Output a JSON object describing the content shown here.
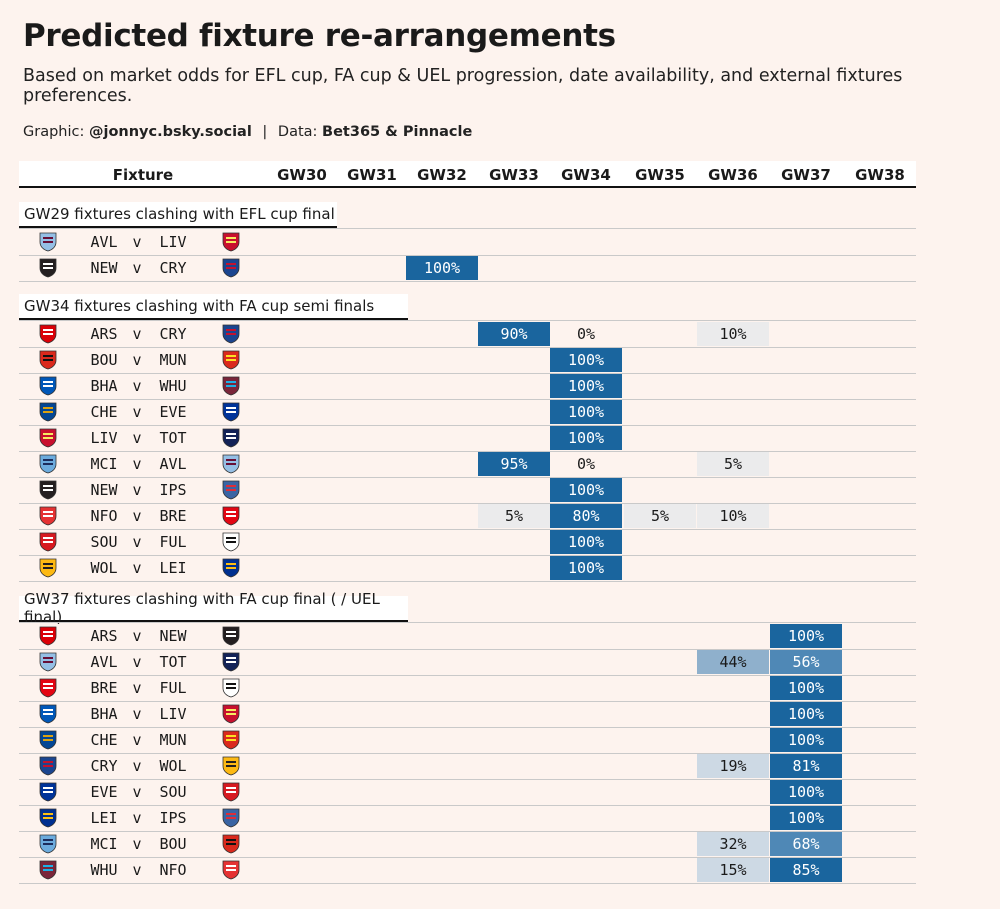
{
  "title": "Predicted fixture re-arrangements",
  "subtitle": "Based on market odds for EFL cup, FA cup & UEL progression, date availability, and external fixtures preferences.",
  "credit": {
    "graphic_label": "Graphic:",
    "graphic_handle": "@jonnyc.bsky.social",
    "separator": "|",
    "data_label": "Data:",
    "data_source": "Bet365 & Pinnacle"
  },
  "colors": {
    "background": "#fdf3ee",
    "dark_blue": "#1a659e",
    "mid_blue": "#4f88b6",
    "light_blue": "#8fb0cc",
    "pale_blue": "#cdd9e4",
    "pale_grey": "#ebebec"
  },
  "chart_data": {
    "type": "table",
    "fixture_header": "Fixture",
    "gameweeks": [
      "GW30",
      "GW31",
      "GW32",
      "GW33",
      "GW34",
      "GW35",
      "GW36",
      "GW37",
      "GW38"
    ],
    "sections": [
      {
        "title": "GW29 fixtures clashing with EFL cup final",
        "rows": [
          {
            "home": "AVL",
            "away": "LIV",
            "home_crest": "aston-villa-crest-icon",
            "away_crest": "liverpool-crest-icon",
            "values": {}
          },
          {
            "home": "NEW",
            "away": "CRY",
            "home_crest": "newcastle-crest-icon",
            "away_crest": "crystal-palace-crest-icon",
            "values": {
              "GW32": 100
            }
          }
        ]
      },
      {
        "title": "GW34 fixtures clashing with FA cup semi finals",
        "rows": [
          {
            "home": "ARS",
            "away": "CRY",
            "home_crest": "arsenal-crest-icon",
            "away_crest": "crystal-palace-crest-icon",
            "values": {
              "GW33": 90,
              "GW34": 0,
              "GW36": 10
            }
          },
          {
            "home": "BOU",
            "away": "MUN",
            "home_crest": "bournemouth-crest-icon",
            "away_crest": "man-united-crest-icon",
            "values": {
              "GW34": 100
            }
          },
          {
            "home": "BHA",
            "away": "WHU",
            "home_crest": "brighton-crest-icon",
            "away_crest": "west-ham-crest-icon",
            "values": {
              "GW34": 100
            }
          },
          {
            "home": "CHE",
            "away": "EVE",
            "home_crest": "chelsea-crest-icon",
            "away_crest": "everton-crest-icon",
            "values": {
              "GW34": 100
            }
          },
          {
            "home": "LIV",
            "away": "TOT",
            "home_crest": "liverpool-crest-icon",
            "away_crest": "tottenham-crest-icon",
            "values": {
              "GW34": 100
            }
          },
          {
            "home": "MCI",
            "away": "AVL",
            "home_crest": "man-city-crest-icon",
            "away_crest": "aston-villa-crest-icon",
            "values": {
              "GW33": 95,
              "GW34": 0,
              "GW36": 5
            }
          },
          {
            "home": "NEW",
            "away": "IPS",
            "home_crest": "newcastle-crest-icon",
            "away_crest": "ipswich-crest-icon",
            "values": {
              "GW34": 100
            }
          },
          {
            "home": "NFO",
            "away": "BRE",
            "home_crest": "nottingham-forest-crest-icon",
            "away_crest": "brentford-crest-icon",
            "values": {
              "GW33": 5,
              "GW34": 80,
              "GW35": 5,
              "GW36": 10
            }
          },
          {
            "home": "SOU",
            "away": "FUL",
            "home_crest": "southampton-crest-icon",
            "away_crest": "fulham-crest-icon",
            "values": {
              "GW34": 100
            }
          },
          {
            "home": "WOL",
            "away": "LEI",
            "home_crest": "wolves-crest-icon",
            "away_crest": "leicester-crest-icon",
            "values": {
              "GW34": 100
            }
          }
        ]
      },
      {
        "title": "GW37 fixtures clashing with FA cup final ( / UEL final)",
        "rows": [
          {
            "home": "ARS",
            "away": "NEW",
            "home_crest": "arsenal-crest-icon",
            "away_crest": "newcastle-crest-icon",
            "values": {
              "GW37": 100
            }
          },
          {
            "home": "AVL",
            "away": "TOT",
            "home_crest": "aston-villa-crest-icon",
            "away_crest": "tottenham-crest-icon",
            "values": {
              "GW36": 44,
              "GW37": 56
            }
          },
          {
            "home": "BRE",
            "away": "FUL",
            "home_crest": "brentford-crest-icon",
            "away_crest": "fulham-crest-icon",
            "values": {
              "GW37": 100
            }
          },
          {
            "home": "BHA",
            "away": "LIV",
            "home_crest": "brighton-crest-icon",
            "away_crest": "liverpool-crest-icon",
            "values": {
              "GW37": 100
            }
          },
          {
            "home": "CHE",
            "away": "MUN",
            "home_crest": "chelsea-crest-icon",
            "away_crest": "man-united-crest-icon",
            "values": {
              "GW37": 100
            }
          },
          {
            "home": "CRY",
            "away": "WOL",
            "home_crest": "crystal-palace-crest-icon",
            "away_crest": "wolves-crest-icon",
            "values": {
              "GW36": 19,
              "GW37": 81
            }
          },
          {
            "home": "EVE",
            "away": "SOU",
            "home_crest": "everton-crest-icon",
            "away_crest": "southampton-crest-icon",
            "values": {
              "GW37": 100
            }
          },
          {
            "home": "LEI",
            "away": "IPS",
            "home_crest": "leicester-crest-icon",
            "away_crest": "ipswich-crest-icon",
            "values": {
              "GW37": 100
            }
          },
          {
            "home": "MCI",
            "away": "BOU",
            "home_crest": "man-city-crest-icon",
            "away_crest": "bournemouth-crest-icon",
            "values": {
              "GW36": 32,
              "GW37": 68
            }
          },
          {
            "home": "WHU",
            "away": "NFO",
            "home_crest": "west-ham-crest-icon",
            "away_crest": "nottingham-forest-crest-icon",
            "values": {
              "GW36": 15,
              "GW37": 85
            }
          }
        ]
      }
    ],
    "vs_label": "v",
    "value_suffix": "%"
  },
  "crest_colors": {
    "arsenal-crest-icon": [
      "#db0007",
      "#ffffff"
    ],
    "aston-villa-crest-icon": [
      "#95bfe5",
      "#670e36"
    ],
    "bournemouth-crest-icon": [
      "#da291c",
      "#111111"
    ],
    "brentford-crest-icon": [
      "#e30613",
      "#ffffff"
    ],
    "brighton-crest-icon": [
      "#0057b8",
      "#ffffff"
    ],
    "chelsea-crest-icon": [
      "#034694",
      "#dba111"
    ],
    "crystal-palace-crest-icon": [
      "#1b458f",
      "#c4122e"
    ],
    "everton-crest-icon": [
      "#003399",
      "#ffffff"
    ],
    "fulham-crest-icon": [
      "#ffffff",
      "#111111"
    ],
    "ipswich-crest-icon": [
      "#3a64a3",
      "#de2c37"
    ],
    "leicester-crest-icon": [
      "#003090",
      "#fdbe11"
    ],
    "liverpool-crest-icon": [
      "#c8102e",
      "#f6eb61"
    ],
    "man-city-crest-icon": [
      "#6cabdd",
      "#1c2c5b"
    ],
    "man-united-crest-icon": [
      "#da291c",
      "#fbe122"
    ],
    "newcastle-crest-icon": [
      "#241f20",
      "#ffffff"
    ],
    "nottingham-forest-crest-icon": [
      "#e53233",
      "#ffffff"
    ],
    "southampton-crest-icon": [
      "#d71920",
      "#ffffff"
    ],
    "tottenham-crest-icon": [
      "#132257",
      "#ffffff"
    ],
    "west-ham-crest-icon": [
      "#7a263a",
      "#1bb1e7"
    ],
    "wolves-crest-icon": [
      "#fdb913",
      "#231f20"
    ]
  }
}
